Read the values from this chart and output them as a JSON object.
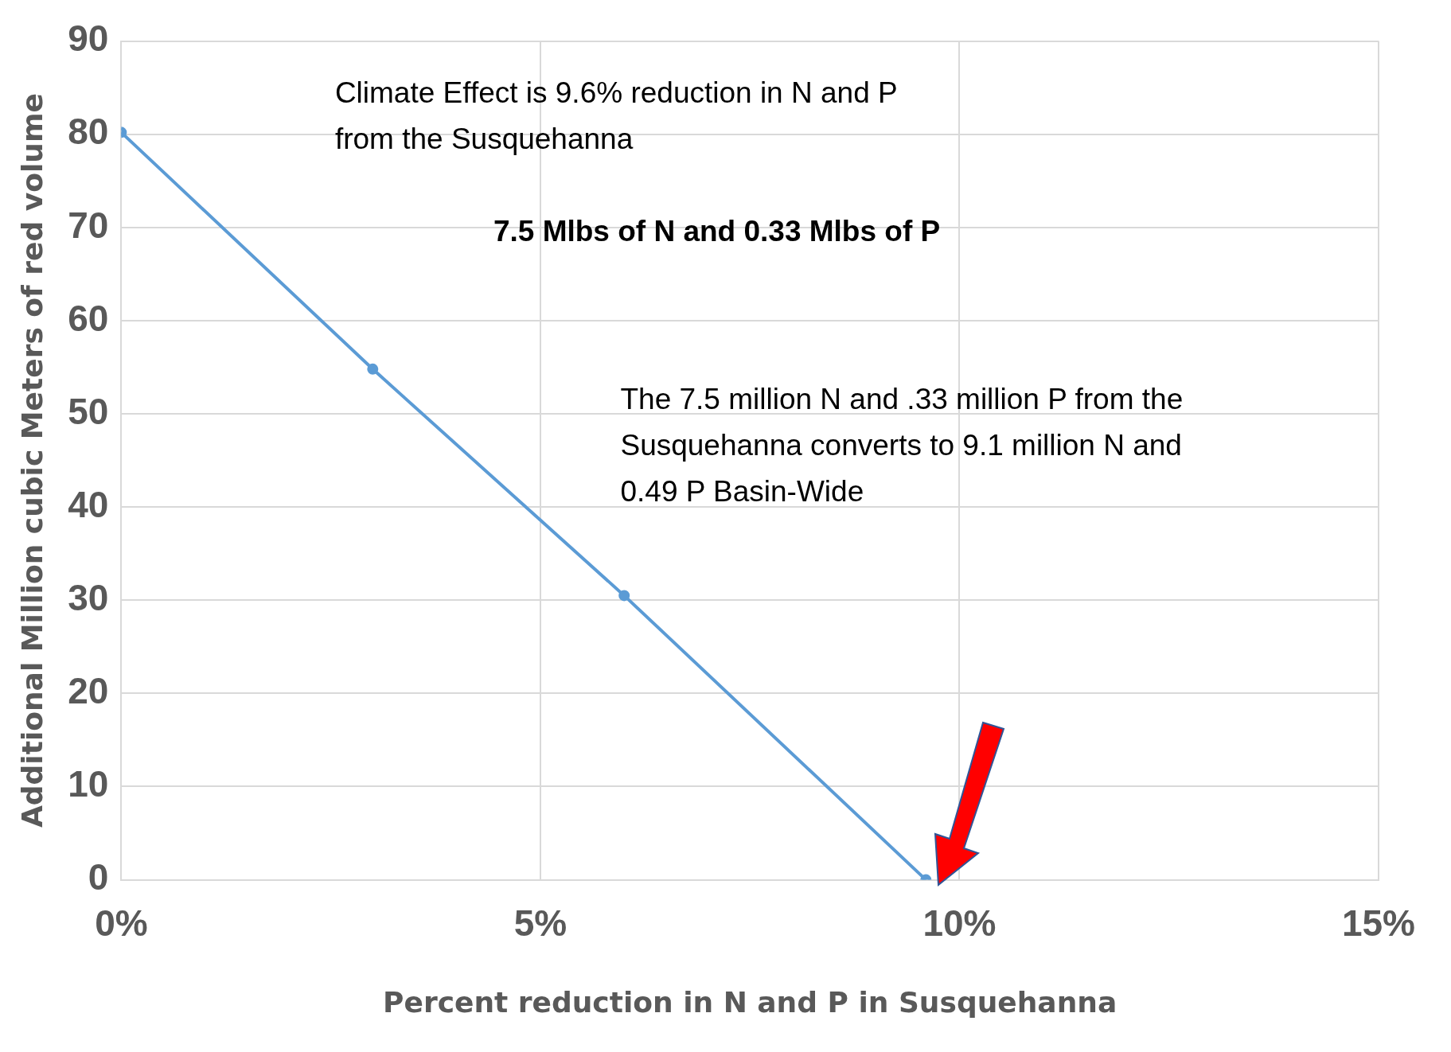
{
  "chart_data": {
    "type": "line",
    "xlabel": "Percent reduction in N and P in Susquehanna",
    "ylabel": "Additional Million cubic Meters of red volume",
    "x": [
      0,
      3,
      6,
      9.6
    ],
    "series": [
      {
        "color": "#5b9bd5",
        "values": [
          80.2,
          54.8,
          30.5,
          0
        ]
      }
    ],
    "xlim": [
      0,
      15
    ],
    "xticks": [
      {
        "value": 0,
        "label": "0%"
      },
      {
        "value": 5,
        "label": "5%"
      },
      {
        "value": 10,
        "label": "10%"
      },
      {
        "value": 15,
        "label": "15%"
      }
    ],
    "ylim": [
      0,
      90
    ],
    "yticks": [
      0,
      10,
      20,
      30,
      40,
      50,
      60,
      70,
      80,
      90
    ],
    "grid": true,
    "marker": "circle",
    "line_style": "solid",
    "annotations": [
      "Climate Effect is 9.6% reduction in N and P from the Susquehanna",
      "7.5 Mlbs of N and 0.33 Mlbs of P",
      "The 7.5 million N and .33 million P from the Susquehanna converts to 9.1 million N and 0.49 P Basin-Wide"
    ]
  }
}
